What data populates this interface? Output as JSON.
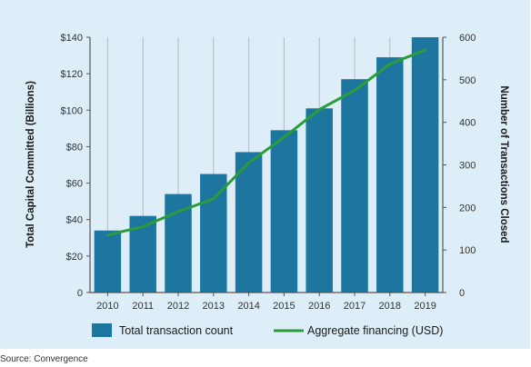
{
  "source_note": "Source: Convergence",
  "chart_data": {
    "type": "bar",
    "categories": [
      "2010",
      "2011",
      "2012",
      "2013",
      "2014",
      "2015",
      "2016",
      "2017",
      "2018",
      "2019"
    ],
    "series": [
      {
        "name": "Total transaction count",
        "type": "bar",
        "axis": "left",
        "values": [
          34,
          42,
          54,
          65,
          77,
          89,
          101,
          117,
          129,
          140
        ],
        "color": "#1c76a0"
      },
      {
        "name": "Aggregate financing (USD)",
        "type": "line",
        "axis": "right",
        "values": [
          135,
          155,
          190,
          220,
          305,
          365,
          430,
          475,
          537,
          570
        ],
        "color": "#2a9c3a"
      }
    ],
    "left_axis": {
      "label": "Total Capital Committed (Billions)",
      "ylim": [
        0,
        140
      ],
      "ticks": [
        0,
        20,
        40,
        60,
        80,
        100,
        120,
        140
      ],
      "tick_labels": [
        "0",
        "$20",
        "$40",
        "$60",
        "$80",
        "$100",
        "$120",
        "$140"
      ]
    },
    "right_axis": {
      "label": "Number of Transactions Closed",
      "ylim": [
        0,
        600
      ],
      "ticks": [
        0,
        100,
        200,
        300,
        400,
        500,
        600
      ],
      "tick_labels": [
        "0",
        "100",
        "200",
        "300",
        "400",
        "500",
        "600"
      ]
    },
    "xlabel": "",
    "grid": "vertical",
    "legend_position": "bottom"
  }
}
